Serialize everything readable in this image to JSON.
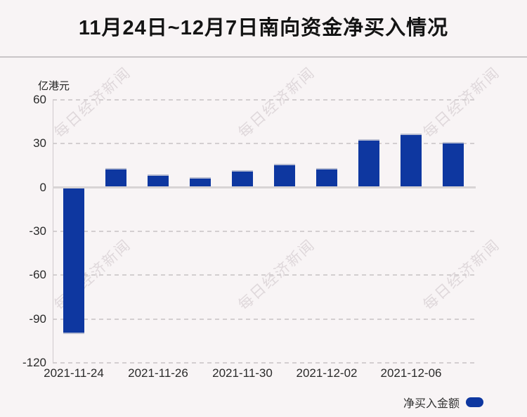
{
  "header": {
    "title": "11月24日~12月7日南向资金净买入情况"
  },
  "chart_data": {
    "type": "bar",
    "title": "11月24日~12月7日南向资金净买入情况",
    "y_axis_title": "亿港元",
    "series_name": "净买入金额",
    "categories": [
      "2021-11-24",
      "",
      "2021-11-26",
      "",
      "2021-11-30",
      "",
      "2021-12-02",
      "",
      "2021-12-06",
      ""
    ],
    "x_tick_labels": [
      "2021-11-24",
      "2021-11-26",
      "2021-11-30",
      "2021-12-02",
      "2021-12-06"
    ],
    "values": [
      -100,
      13,
      9,
      7,
      12,
      16,
      13,
      33,
      37,
      31
    ],
    "ylim": [
      -120,
      60
    ],
    "y_ticks": [
      60,
      30,
      0,
      -30,
      -60,
      -90,
      -120
    ],
    "grid": "horizontal-dashed",
    "legend_position": "bottom-right",
    "watermark_text": "每日经济新闻"
  },
  "colors": {
    "background": "#f8f4f5",
    "bar": "#0e37a0",
    "grid": "#d3ced0",
    "zero_line": "#d8d4d5",
    "title_text": "#141414",
    "axis_text": "#2a2a2a",
    "watermark": "#a6989e"
  }
}
